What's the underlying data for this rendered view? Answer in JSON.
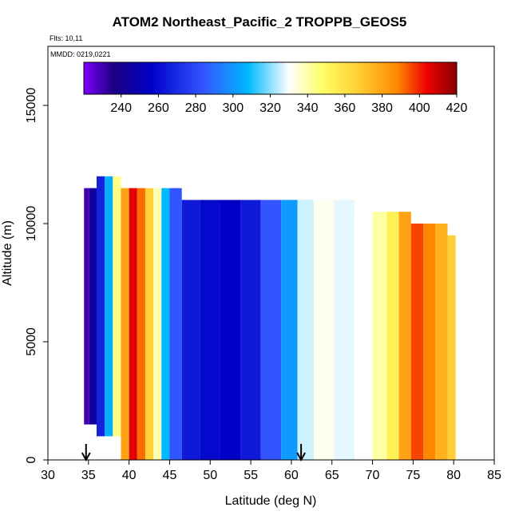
{
  "header": {
    "title": "ATOM2 Northeast_Pacific_2 TROPPB_GEOS5",
    "flights": "Flts: 10,11",
    "dates": "MMDD: 0219,0221"
  },
  "chart_data": {
    "type": "heatmap",
    "title": "ATOM2 Northeast_Pacific_2 TROPPB_GEOS5",
    "xlabel": "Latitude (deg N)",
    "ylabel": "Altitude (m)",
    "xlim": [
      30,
      85
    ],
    "ylim": [
      0,
      17500
    ],
    "x_ticks": [
      30,
      35,
      40,
      45,
      50,
      55,
      60,
      65,
      70,
      75,
      80,
      85
    ],
    "x_tick_labels": [
      "30",
      "35",
      "40",
      "45",
      "50",
      "55",
      "60",
      "65",
      "70",
      "75",
      "80",
      "85"
    ],
    "y_ticks": [
      0,
      5000,
      10000,
      15000
    ],
    "y_tick_labels": [
      "0",
      "5000",
      "10000",
      "15000"
    ],
    "colorbar": {
      "min": 220,
      "max": 420,
      "ticks": [
        240,
        260,
        280,
        300,
        320,
        340,
        360,
        380,
        400,
        420
      ],
      "tick_labels": [
        "240",
        "260",
        "280",
        "300",
        "320",
        "340",
        "360",
        "380",
        "400",
        "420"
      ],
      "colors": [
        "#7f00ff",
        "#1a0080",
        "#0000c8",
        "#3355ff",
        "#00b8ff",
        "#ffffff",
        "#ffff66",
        "#ffcc33",
        "#ff8800",
        "#ee0000",
        "#880000"
      ]
    },
    "markers": [
      34.7,
      61.2
    ],
    "columns": [
      {
        "lat": 34.7,
        "ymin": 1500,
        "ymax": 11500,
        "value": 232
      },
      {
        "lat": 35.5,
        "ymin": 1500,
        "ymax": 11500,
        "value": 248
      },
      {
        "lat": 36.5,
        "ymin": 1000,
        "ymax": 12000,
        "value": 268
      },
      {
        "lat": 37.5,
        "ymin": 1000,
        "ymax": 12000,
        "value": 298
      },
      {
        "lat": 38.5,
        "ymin": 1000,
        "ymax": 12000,
        "value": 336
      },
      {
        "lat": 39.5,
        "ymin": 0,
        "ymax": 11500,
        "value": 372
      },
      {
        "lat": 40.5,
        "ymin": 0,
        "ymax": 11500,
        "value": 402
      },
      {
        "lat": 41.5,
        "ymin": 0,
        "ymax": 11500,
        "value": 384
      },
      {
        "lat": 42.5,
        "ymin": 0,
        "ymax": 11500,
        "value": 358
      },
      {
        "lat": 43.5,
        "ymin": 0,
        "ymax": 11500,
        "value": 330
      },
      {
        "lat": 44.5,
        "ymin": 0,
        "ymax": 11500,
        "value": 300
      },
      {
        "lat": 45.5,
        "ymin": 0,
        "ymax": 11500,
        "value": 280
      },
      {
        "lat": 47.5,
        "ymin": 0,
        "ymax": 11000,
        "value": 266
      },
      {
        "lat": 50,
        "ymin": 0,
        "ymax": 11000,
        "value": 262
      },
      {
        "lat": 52.5,
        "ymin": 0,
        "ymax": 11000,
        "value": 260
      },
      {
        "lat": 55,
        "ymin": 0,
        "ymax": 11000,
        "value": 266
      },
      {
        "lat": 57.5,
        "ymin": 0,
        "ymax": 11000,
        "value": 280
      },
      {
        "lat": 60,
        "ymin": 0,
        "ymax": 11000,
        "value": 294
      },
      {
        "lat": 61.5,
        "ymin": 0,
        "ymax": 11000,
        "value": 316
      },
      {
        "lat": 64,
        "ymin": 0,
        "ymax": 11000,
        "value": 322
      },
      {
        "lat": 66.5,
        "ymin": 0,
        "ymax": 11000,
        "value": 318
      },
      {
        "lat": 69,
        "ymin": 0,
        "ymax": 10500,
        "value": 320
      },
      {
        "lat": 71,
        "ymin": 0,
        "ymax": 10500,
        "value": 332
      },
      {
        "lat": 72.5,
        "ymin": 0,
        "ymax": 10500,
        "value": 346
      },
      {
        "lat": 74,
        "ymin": 0,
        "ymax": 10500,
        "value": 372
      },
      {
        "lat": 75.5,
        "ymin": 0,
        "ymax": 10000,
        "value": 390
      },
      {
        "lat": 77,
        "ymin": 0,
        "ymax": 10000,
        "value": 380
      },
      {
        "lat": 78.5,
        "ymin": 0,
        "ymax": 10000,
        "value": 368
      },
      {
        "lat": 80,
        "ymin": 0,
        "ymax": 9500,
        "value": 358
      }
    ]
  }
}
